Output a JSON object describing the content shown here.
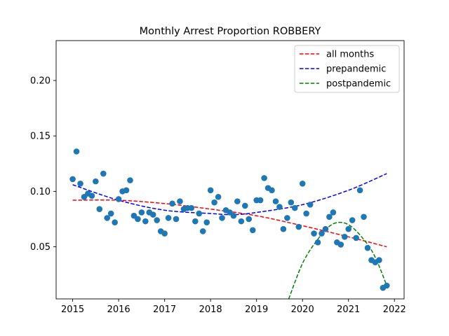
{
  "chart_data": {
    "type": "scatter",
    "title": "Monthly Arrest Proportion ROBBERY",
    "xlabel": "",
    "ylabel": "",
    "xlim": [
      2014.64,
      2022.21
    ],
    "ylim": [
      0.003,
      0.236
    ],
    "x_ticks": [
      2015,
      2016,
      2017,
      2018,
      2019,
      2020,
      2021,
      2022
    ],
    "y_ticks": [
      0.05,
      0.1,
      0.15,
      0.2
    ],
    "y_tick_labels": [
      "0.05",
      "0.10",
      "0.15",
      "0.20"
    ],
    "grid": false,
    "legend_position": "upper right",
    "marker_color": "#1f77b4",
    "points": {
      "x": [
        2015.0,
        2015.083,
        2015.167,
        2015.25,
        2015.333,
        2015.417,
        2015.5,
        2015.583,
        2015.667,
        2015.75,
        2015.833,
        2015.917,
        2016.0,
        2016.083,
        2016.167,
        2016.25,
        2016.333,
        2016.417,
        2016.5,
        2016.583,
        2016.667,
        2016.75,
        2016.833,
        2016.917,
        2017.0,
        2017.083,
        2017.167,
        2017.25,
        2017.333,
        2017.417,
        2017.5,
        2017.583,
        2017.667,
        2017.75,
        2017.833,
        2017.917,
        2018.0,
        2018.083,
        2018.167,
        2018.25,
        2018.333,
        2018.417,
        2018.5,
        2018.583,
        2018.667,
        2018.75,
        2018.833,
        2018.917,
        2019.0,
        2019.083,
        2019.167,
        2019.25,
        2019.333,
        2019.417,
        2019.5,
        2019.583,
        2019.667,
        2019.75,
        2019.833,
        2019.917,
        2020.0,
        2020.083,
        2020.167,
        2020.25,
        2020.333,
        2020.417,
        2020.5,
        2020.583,
        2020.667,
        2020.75,
        2020.833,
        2020.917,
        2021.0,
        2021.083,
        2021.167,
        2021.25,
        2021.333,
        2021.417,
        2021.5,
        2021.583,
        2021.667,
        2021.75,
        2021.833
      ],
      "y": [
        0.111,
        0.136,
        0.107,
        0.095,
        0.098,
        0.096,
        0.109,
        0.084,
        0.116,
        0.076,
        0.08,
        0.072,
        0.093,
        0.1,
        0.101,
        0.11,
        0.078,
        0.075,
        0.081,
        0.073,
        0.081,
        0.079,
        0.074,
        0.064,
        0.062,
        0.076,
        0.089,
        0.075,
        0.091,
        0.084,
        0.085,
        0.085,
        0.073,
        0.08,
        0.064,
        0.072,
        0.101,
        0.09,
        0.095,
        0.076,
        0.083,
        0.081,
        0.078,
        0.091,
        0.073,
        0.087,
        0.075,
        0.065,
        0.092,
        0.092,
        0.112,
        0.103,
        0.101,
        0.091,
        0.086,
        0.066,
        0.076,
        0.09,
        0.085,
        0.068,
        0.107,
        0.08,
        0.088,
        0.062,
        0.054,
        0.062,
        0.066,
        0.077,
        0.081,
        0.054,
        0.052,
        0.059,
        0.066,
        0.074,
        0.058,
        0.101,
        0.077,
        0.049,
        0.038,
        0.036,
        0.038,
        0.013,
        0.015
      ]
    },
    "fits": [
      {
        "name": "all months",
        "color": "#ff0000",
        "style": "dashed",
        "x": [
          2015.0,
          2016.0,
          2017.0,
          2018.0,
          2019.0,
          2020.0,
          2021.0,
          2021.833
        ],
        "y": [
          0.092,
          0.092,
          0.089,
          0.084,
          0.078,
          0.069,
          0.059,
          0.05
        ]
      },
      {
        "name": "prepandemic",
        "color": "#0000ff",
        "style": "dashed",
        "x": [
          2015.0,
          2016.0,
          2017.0,
          2018.0,
          2018.5,
          2019.0,
          2020.0,
          2021.0,
          2021.833
        ],
        "y": [
          0.106,
          0.092,
          0.083,
          0.08,
          0.079,
          0.081,
          0.088,
          0.101,
          0.116
        ]
      },
      {
        "name": "postpandemic",
        "color": "#008000",
        "style": "dashed",
        "x": [
          2019.7,
          2020.0,
          2020.3,
          2020.6,
          2020.85,
          2021.1,
          2021.4,
          2021.6,
          2021.833
        ],
        "y": [
          0.003,
          0.035,
          0.055,
          0.069,
          0.072,
          0.067,
          0.053,
          0.039,
          0.015
        ]
      }
    ],
    "legend": [
      "all months",
      "prepandemic",
      "postpandemic"
    ]
  }
}
